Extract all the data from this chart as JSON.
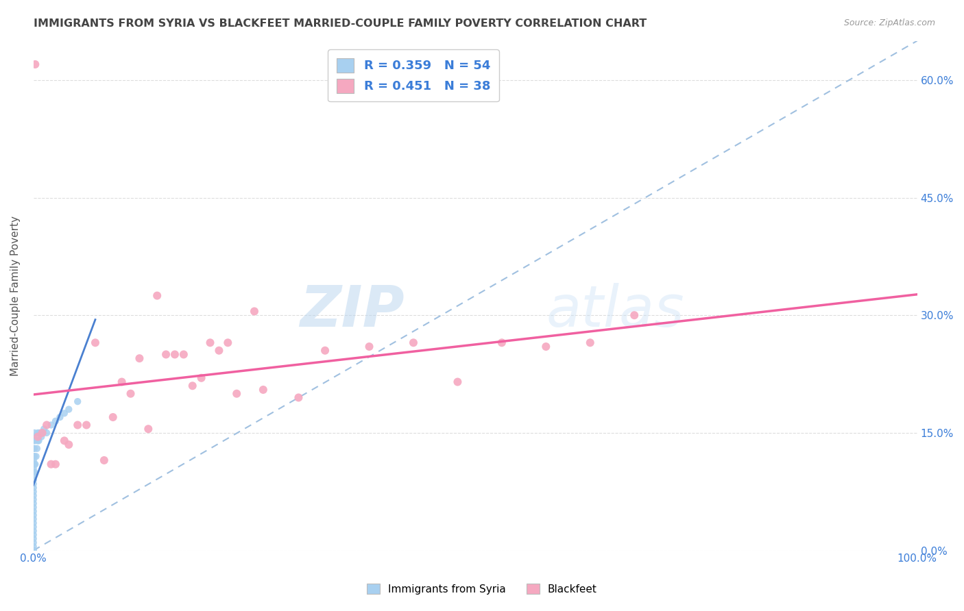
{
  "title": "IMMIGRANTS FROM SYRIA VS BLACKFEET MARRIED-COUPLE FAMILY POVERTY CORRELATION CHART",
  "source": "Source: ZipAtlas.com",
  "ylabel": "Married-Couple Family Poverty",
  "ytick_vals": [
    0,
    15,
    30,
    45,
    60
  ],
  "xlim": [
    0,
    100
  ],
  "ylim": [
    0,
    65
  ],
  "blue_color": "#A8D0F0",
  "pink_color": "#F5A8C0",
  "blue_line_color": "#4A80D0",
  "pink_line_color": "#F060A0",
  "dashed_line_color": "#A0C0E0",
  "text_color": "#3B7DD8",
  "title_color": "#444444",
  "watermark_zip": "ZIP",
  "watermark_atlas": "atlas",
  "syria_x": [
    0.0,
    0.0,
    0.0,
    0.0,
    0.0,
    0.0,
    0.0,
    0.0,
    0.0,
    0.0,
    0.0,
    0.0,
    0.0,
    0.0,
    0.0,
    0.0,
    0.0,
    0.0,
    0.0,
    0.0,
    0.0,
    0.0,
    0.0,
    0.0,
    0.0,
    0.0,
    0.0,
    0.0,
    0.0,
    0.0,
    0.1,
    0.1,
    0.1,
    0.1,
    0.1,
    0.2,
    0.2,
    0.3,
    0.4,
    0.5,
    0.5,
    0.6,
    0.7,
    0.8,
    0.9,
    1.0,
    1.2,
    1.5,
    2.0,
    2.5,
    3.0,
    3.5,
    4.0,
    5.0
  ],
  "syria_y": [
    0.0,
    0.0,
    0.0,
    1.0,
    2.0,
    3.0,
    4.0,
    5.0,
    6.0,
    7.0,
    8.0,
    9.0,
    10.0,
    11.0,
    12.0,
    13.0,
    14.0,
    0.5,
    1.5,
    2.5,
    3.5,
    4.5,
    5.5,
    6.5,
    7.5,
    8.5,
    9.5,
    10.5,
    11.5,
    14.5,
    10.0,
    11.0,
    12.0,
    13.0,
    15.0,
    11.0,
    14.0,
    12.0,
    13.0,
    14.0,
    15.0,
    14.0,
    15.0,
    15.0,
    14.5,
    15.0,
    15.5,
    15.0,
    16.0,
    16.5,
    17.0,
    17.5,
    18.0,
    19.0
  ],
  "blackfeet_x": [
    0.2,
    0.5,
    1.5,
    2.5,
    3.5,
    5.0,
    7.0,
    9.0,
    11.0,
    13.0,
    15.0,
    17.0,
    19.0,
    21.0,
    23.0,
    26.0,
    30.0,
    33.0,
    38.0,
    43.0,
    48.0,
    53.0,
    58.0,
    63.0,
    68.0,
    1.0,
    2.0,
    4.0,
    6.0,
    8.0,
    10.0,
    12.0,
    14.0,
    16.0,
    18.0,
    20.0,
    22.0,
    25.0
  ],
  "blackfeet_y": [
    62.0,
    14.5,
    16.0,
    11.0,
    14.0,
    16.0,
    26.5,
    17.0,
    20.0,
    15.5,
    25.0,
    25.0,
    22.0,
    25.5,
    20.0,
    20.5,
    19.5,
    25.5,
    26.0,
    26.5,
    21.5,
    26.5,
    26.0,
    26.5,
    30.0,
    15.0,
    11.0,
    13.5,
    16.0,
    11.5,
    21.5,
    24.5,
    32.5,
    25.0,
    21.0,
    26.5,
    26.5,
    30.5
  ]
}
